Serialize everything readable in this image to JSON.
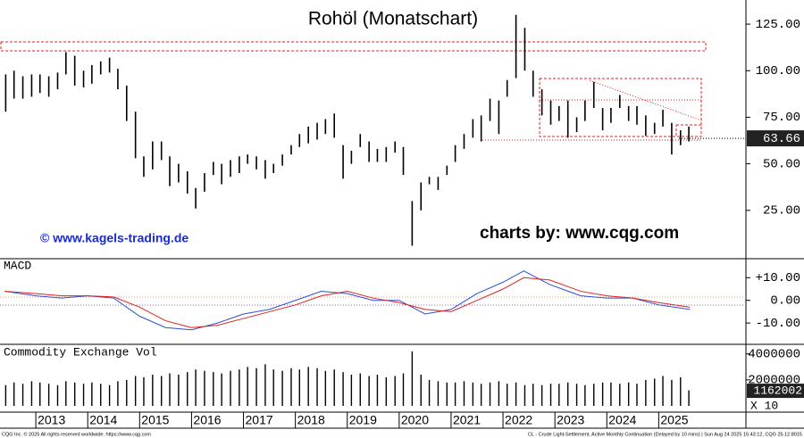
{
  "chart_data": [
    {
      "type": "hilo",
      "title": "Rohöl (Monatschart)",
      "credit_left": "© www.kagels-trading.de",
      "credit_right": "charts by: www.cqg.com",
      "color": "#000000",
      "xlim": [
        2012.31,
        2026.68
      ],
      "ylim": [
        0,
        137
      ],
      "yticks": [
        {
          "value": 125,
          "label": "125.00"
        },
        {
          "value": 100,
          "label": "100.00"
        },
        {
          "value": 75,
          "label": "75.00"
        },
        {
          "value": 50,
          "label": "50.00"
        },
        {
          "value": 25,
          "label": "25.00"
        }
      ],
      "last_value": 63.66,
      "x": [
        2012.42,
        2012.58,
        2012.75,
        2012.92,
        2013.08,
        2013.25,
        2013.42,
        2013.58,
        2013.75,
        2013.92,
        2014.08,
        2014.25,
        2014.42,
        2014.58,
        2014.75,
        2014.92,
        2015.08,
        2015.25,
        2015.42,
        2015.58,
        2015.75,
        2015.92,
        2016.08,
        2016.25,
        2016.42,
        2016.58,
        2016.75,
        2016.92,
        2017.08,
        2017.25,
        2017.42,
        2017.58,
        2017.75,
        2017.92,
        2018.08,
        2018.25,
        2018.42,
        2018.58,
        2018.75,
        2018.92,
        2019.08,
        2019.25,
        2019.42,
        2019.58,
        2019.75,
        2019.92,
        2020.08,
        2020.25,
        2020.42,
        2020.58,
        2020.75,
        2020.92,
        2021.08,
        2021.25,
        2021.42,
        2021.58,
        2021.75,
        2021.92,
        2022.08,
        2022.25,
        2022.42,
        2022.58,
        2022.75,
        2022.92,
        2023.08,
        2023.25,
        2023.42,
        2023.58,
        2023.75,
        2023.92,
        2024.08,
        2024.25,
        2024.42,
        2024.58,
        2024.75,
        2024.92,
        2025.08,
        2025.25,
        2025.42,
        2025.58
      ],
      "high": [
        98,
        100,
        97,
        98,
        98,
        97,
        99,
        110,
        108,
        100,
        103,
        105,
        107,
        101,
        92,
        78,
        54,
        62,
        62,
        54,
        50,
        46,
        37,
        45,
        51,
        50,
        52,
        54,
        55,
        54,
        52,
        50,
        55,
        60,
        66,
        70,
        72,
        74,
        77,
        60,
        57,
        66,
        62,
        58,
        59,
        62,
        59,
        30,
        40,
        43,
        43,
        49,
        60,
        66,
        74,
        76,
        85,
        84,
        95,
        130,
        123,
        100,
        90,
        84,
        81,
        84,
        75,
        84,
        94,
        80,
        80,
        87,
        81,
        81,
        76,
        72,
        79,
        72,
        68,
        70
      ],
      "low": [
        78,
        85,
        85,
        86,
        88,
        86,
        90,
        98,
        92,
        91,
        93,
        98,
        99,
        90,
        73,
        53,
        43,
        47,
        52,
        38,
        40,
        34,
        26,
        35,
        44,
        39,
        43,
        45,
        50,
        47,
        42,
        45,
        49,
        55,
        59,
        61,
        63,
        66,
        64,
        42,
        50,
        59,
        51,
        51,
        51,
        56,
        44,
        6,
        25,
        39,
        36,
        44,
        51,
        58,
        64,
        62,
        73,
        66,
        86,
        96,
        100,
        86,
        76,
        71,
        73,
        64,
        67,
        73,
        80,
        68,
        72,
        80,
        73,
        71,
        65,
        66,
        70,
        55,
        60,
        62
      ]
    },
    {
      "type": "line",
      "title": "MACD",
      "xlim": [
        2012.31,
        2026.68
      ],
      "ylim": [
        -19,
        17.6
      ],
      "yticks": [
        {
          "value": 10,
          "label": "+10.00"
        },
        {
          "value": 0,
          "label": "0.00"
        },
        {
          "value": -10,
          "label": "-10.00"
        }
      ],
      "x": [
        2012.4,
        2013.0,
        2013.5,
        2014.0,
        2014.5,
        2015.0,
        2015.5,
        2016.0,
        2016.5,
        2017.0,
        2017.5,
        2018.0,
        2018.5,
        2019.0,
        2019.5,
        2020.0,
        2020.5,
        2021.0,
        2021.5,
        2022.0,
        2022.4,
        2022.9,
        2023.5,
        2024.0,
        2024.5,
        2025.0,
        2025.6
      ],
      "series": [
        {
          "color": "#2b4fd6",
          "values": [
            4,
            2,
            1,
            2,
            1,
            -7,
            -12,
            -13,
            -10,
            -6,
            -4,
            0,
            4,
            3,
            0,
            0,
            -6,
            -4,
            3,
            8,
            13,
            7,
            2,
            1,
            1,
            -2,
            -4
          ]
        },
        {
          "color": "#e02020",
          "values": [
            4,
            3,
            2,
            2,
            1.5,
            -3,
            -9,
            -12,
            -11,
            -8,
            -5,
            -2,
            2,
            4,
            1,
            -1,
            -4,
            -5,
            0,
            5,
            10,
            9,
            4,
            2,
            1,
            -1,
            -3
          ]
        }
      ]
    },
    {
      "type": "bar",
      "title": "Commodity Exchange Vol",
      "color": "#000000",
      "xlim": [
        2012.31,
        2026.68
      ],
      "ylim": [
        0,
        4600000
      ],
      "yticks": [
        4000000,
        2000000
      ],
      "last_value": 1162002,
      "multiplier_label": "X 10",
      "xticks": [
        2013,
        2014,
        2015,
        2016,
        2017,
        2018,
        2019,
        2020,
        2021,
        2022,
        2023,
        2024,
        2025
      ],
      "x": [
        2012.42,
        2012.58,
        2012.75,
        2012.92,
        2013.08,
        2013.25,
        2013.42,
        2013.58,
        2013.75,
        2013.92,
        2014.08,
        2014.25,
        2014.42,
        2014.58,
        2014.75,
        2014.92,
        2015.08,
        2015.25,
        2015.42,
        2015.58,
        2015.75,
        2015.92,
        2016.08,
        2016.25,
        2016.42,
        2016.58,
        2016.75,
        2016.92,
        2017.08,
        2017.25,
        2017.42,
        2017.58,
        2017.75,
        2017.92,
        2018.08,
        2018.25,
        2018.42,
        2018.58,
        2018.75,
        2018.92,
        2019.08,
        2019.25,
        2019.42,
        2019.58,
        2019.75,
        2019.92,
        2020.08,
        2020.25,
        2020.42,
        2020.58,
        2020.75,
        2020.92,
        2021.08,
        2021.25,
        2021.42,
        2021.58,
        2021.75,
        2021.92,
        2022.08,
        2022.25,
        2022.42,
        2022.58,
        2022.75,
        2022.92,
        2023.08,
        2023.25,
        2023.42,
        2023.58,
        2023.75,
        2023.92,
        2024.08,
        2024.25,
        2024.42,
        2024.58,
        2024.75,
        2024.92,
        2025.08,
        2025.25,
        2025.42,
        2025.58
      ],
      "values": [
        1600000,
        1800000,
        1700000,
        1900000,
        1800000,
        1700000,
        1600000,
        1900000,
        1800000,
        1700000,
        1800000,
        1700000,
        1600000,
        1900000,
        2000000,
        2300000,
        2200000,
        2400000,
        2300000,
        2500000,
        2400000,
        2600000,
        2800000,
        2700000,
        2600000,
        2500000,
        2700000,
        2800000,
        3000000,
        2900000,
        3200000,
        2800000,
        2700000,
        2900000,
        2800000,
        3000000,
        2900000,
        2700000,
        2800000,
        2600000,
        2400000,
        2500000,
        2300000,
        2400000,
        2200000,
        2300000,
        2500000,
        4200000,
        2400000,
        2000000,
        1900000,
        1800000,
        1800000,
        1900000,
        1800000,
        1700000,
        1800000,
        1900000,
        1700000,
        1800000,
        1600000,
        1700000,
        1600000,
        1700000,
        1700000,
        1800000,
        1700000,
        1600000,
        1700000,
        1800000,
        1800000,
        1700000,
        1800000,
        1700000,
        2000000,
        2100000,
        2300000,
        2000000,
        2200000,
        1200000
      ]
    }
  ],
  "footer": {
    "left": "CQG Inc. © 2025 All rights reserved worldwide. https://www.cqg.com",
    "right": "CL - Crude Light-Settlement, Active Monthly Continuation (Delayed by 10 mins) | Sun Aug 24 2025 15:43:12, CQG 25.12.8015"
  }
}
